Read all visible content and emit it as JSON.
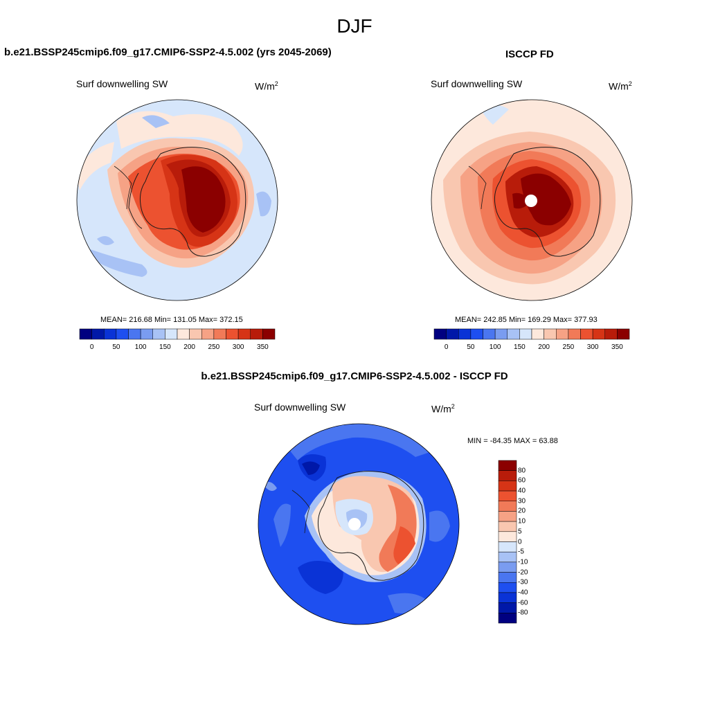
{
  "figure": {
    "season": "DJF"
  },
  "panels": {
    "model": {
      "title": "b.e21.BSSP245cmip6.f09_g17.CMIP6-SSP2-4.5.002 (yrs 2045-2069)",
      "variable": "Surf downwelling SW",
      "units": "W/m",
      "units_exp": "2",
      "stats": "MEAN= 216.68  Min= 131.05  Max= 372.15",
      "mean": 216.68,
      "min": 131.05,
      "max": 372.15
    },
    "obs": {
      "title": "ISCCP FD",
      "variable": "Surf downwelling SW",
      "units": "W/m",
      "units_exp": "2",
      "stats": "MEAN= 242.85  Min= 169.29  Max= 377.93",
      "mean": 242.85,
      "min": 169.29,
      "max": 377.93
    },
    "diff": {
      "title": "b.e21.BSSP245cmip6.f09_g17.CMIP6-SSP2-4.5.002 - ISCCP FD",
      "variable": "Surf downwelling SW",
      "units": "W/m",
      "units_exp": "2",
      "stats": "MIN = -84.35 MAX =  63.88",
      "min": -84.35,
      "max": 63.88
    }
  },
  "colorbars": {
    "abs": {
      "ticks": [
        "0",
        "50",
        "100",
        "150",
        "200",
        "250",
        "300",
        "350"
      ],
      "colors": [
        "#000080",
        "#0018a8",
        "#0a33d6",
        "#1e4ff0",
        "#4a76f0",
        "#7a9cf0",
        "#a8c2f5",
        "#d6e6fb",
        "#fde8dc",
        "#f9c7b0",
        "#f6a285",
        "#f17a58",
        "#ec5230",
        "#d63416",
        "#b81c0a",
        "#8b0000"
      ]
    },
    "diff": {
      "ticks": [
        "80",
        "60",
        "40",
        "30",
        "20",
        "10",
        "5",
        "0",
        "-5",
        "-10",
        "-20",
        "-30",
        "-40",
        "-60",
        "-80"
      ],
      "colors": [
        "#8b0000",
        "#b81c0a",
        "#d63416",
        "#ec5230",
        "#f17a58",
        "#f6a285",
        "#f9c7b0",
        "#fde8dc",
        "#d6e6fb",
        "#a8c2f5",
        "#7a9cf0",
        "#4a76f0",
        "#1e4ff0",
        "#0a33d6",
        "#0018a8",
        "#000080"
      ]
    }
  }
}
